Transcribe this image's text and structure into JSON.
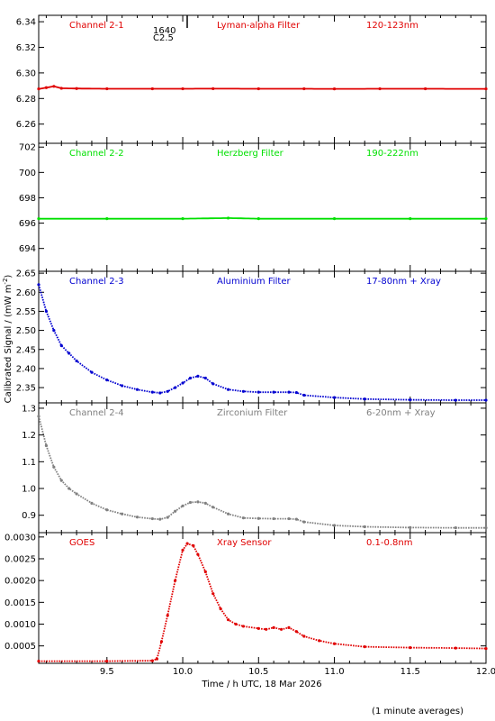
{
  "figure": {
    "ylabel": "Calibrated Signal / (mW m",
    "ylabel_sup": "-2",
    "ylabel_end": ")",
    "xlabel": "Time / h UTC, 18 Mar 2026",
    "footnote": "(1 minute averages)",
    "flare_time": "1640",
    "flare_class": "C2.5"
  },
  "chart_data": [
    {
      "type": "scatter",
      "channel": "Channel 2-1",
      "filter": "Lyman-alpha Filter",
      "band": "120-123nm",
      "color": "#e00000",
      "xlim": [
        9.05,
        12.0
      ],
      "ylim": [
        6.245,
        6.345
      ],
      "yticks": [
        6.26,
        6.28,
        6.3,
        6.32,
        6.34
      ],
      "ytick_labels": [
        "6.26",
        "6.28",
        "6.30",
        "6.32",
        "6.34"
      ],
      "x": [
        9.05,
        9.1,
        9.15,
        9.2,
        9.3,
        9.5,
        9.8,
        10.0,
        10.2,
        10.5,
        10.8,
        11.0,
        11.3,
        11.6,
        12.0
      ],
      "y": [
        6.2875,
        6.2885,
        6.2895,
        6.288,
        6.2878,
        6.2876,
        6.2876,
        6.2876,
        6.2877,
        6.2876,
        6.2876,
        6.2875,
        6.2876,
        6.2876,
        6.2875
      ]
    },
    {
      "type": "scatter",
      "channel": "Channel 2-2",
      "filter": "Herzberg Filter",
      "band": "190-222nm",
      "color": "#00e000",
      "xlim": [
        9.05,
        12.0
      ],
      "ylim": [
        692.2,
        702.3
      ],
      "yticks": [
        694,
        696,
        698,
        700,
        702
      ],
      "ytick_labels": [
        "694",
        "696",
        "698",
        "700",
        "702"
      ],
      "x": [
        9.05,
        9.5,
        10.0,
        10.3,
        10.5,
        11.0,
        11.5,
        12.0
      ],
      "y": [
        696.35,
        696.35,
        696.35,
        696.4,
        696.35,
        696.35,
        696.35,
        696.35
      ]
    },
    {
      "type": "scatter",
      "channel": "Channel 2-3",
      "filter": "Aluminium Filter",
      "band": "17-80nm + Xray",
      "color": "#0000d0",
      "xlim": [
        9.05,
        12.0
      ],
      "ylim": [
        2.31,
        2.655
      ],
      "yticks": [
        2.35,
        2.4,
        2.45,
        2.5,
        2.55,
        2.6,
        2.65
      ],
      "ytick_labels": [
        "2.35",
        "2.40",
        "2.45",
        "2.50",
        "2.55",
        "2.60",
        "2.65"
      ],
      "x": [
        9.05,
        9.1,
        9.15,
        9.2,
        9.25,
        9.3,
        9.4,
        9.5,
        9.6,
        9.7,
        9.8,
        9.85,
        9.9,
        9.95,
        10.0,
        10.05,
        10.1,
        10.15,
        10.2,
        10.3,
        10.4,
        10.5,
        10.6,
        10.7,
        10.75,
        10.8,
        11.0,
        11.2,
        11.5,
        11.8,
        12.0
      ],
      "y": [
        2.62,
        2.55,
        2.5,
        2.46,
        2.44,
        2.42,
        2.39,
        2.37,
        2.355,
        2.345,
        2.338,
        2.336,
        2.34,
        2.35,
        2.362,
        2.375,
        2.38,
        2.375,
        2.36,
        2.345,
        2.34,
        2.338,
        2.338,
        2.338,
        2.337,
        2.33,
        2.324,
        2.32,
        2.318,
        2.317,
        2.317
      ]
    },
    {
      "type": "scatter",
      "channel": "Channel 2-4",
      "filter": "Zirconium Filter",
      "band": "6-20nm + Xray",
      "color": "#808080",
      "xlim": [
        9.05,
        12.0
      ],
      "ylim": [
        0.835,
        1.32
      ],
      "yticks": [
        0.9,
        1.0,
        1.1,
        1.2,
        1.3
      ],
      "ytick_labels": [
        "0.9",
        "1.0",
        "1.1",
        "1.2",
        "1.3"
      ],
      "x": [
        9.05,
        9.1,
        9.15,
        9.2,
        9.25,
        9.3,
        9.4,
        9.5,
        9.6,
        9.7,
        9.8,
        9.85,
        9.9,
        9.95,
        10.0,
        10.05,
        10.1,
        10.15,
        10.2,
        10.3,
        10.4,
        10.5,
        10.6,
        10.7,
        10.75,
        10.8,
        11.0,
        11.2,
        11.5,
        11.8,
        12.0
      ],
      "y": [
        1.27,
        1.16,
        1.08,
        1.03,
        1.0,
        0.98,
        0.945,
        0.92,
        0.905,
        0.893,
        0.887,
        0.885,
        0.892,
        0.915,
        0.935,
        0.948,
        0.95,
        0.945,
        0.93,
        0.905,
        0.89,
        0.888,
        0.887,
        0.887,
        0.885,
        0.875,
        0.862,
        0.857,
        0.854,
        0.853,
        0.853
      ]
    },
    {
      "type": "scatter",
      "channel": "GOES",
      "filter": "Xray Sensor",
      "band": "0.1-0.8nm",
      "color": "#e00000",
      "xlim": [
        9.05,
        12.0
      ],
      "ylim": [
        0.0001,
        0.0031
      ],
      "yticks": [
        0.0005,
        0.001,
        0.0015,
        0.002,
        0.0025,
        0.003
      ],
      "ytick_labels": [
        "0.0005",
        "0.0010",
        "0.0015",
        "0.0020",
        "0.0025",
        "0.0030"
      ],
      "xticks": [
        9.5,
        10.0,
        10.5,
        11.0,
        11.5,
        12.0
      ],
      "xtick_labels": [
        "9.5",
        "10.0",
        "10.5",
        "11.0",
        "11.5",
        "12.0"
      ],
      "x": [
        9.05,
        9.5,
        9.8,
        9.83,
        9.86,
        9.9,
        9.95,
        10.0,
        10.03,
        10.07,
        10.1,
        10.15,
        10.2,
        10.25,
        10.3,
        10.35,
        10.4,
        10.5,
        10.55,
        10.6,
        10.65,
        10.7,
        10.75,
        10.8,
        10.9,
        11.0,
        11.2,
        11.5,
        11.8,
        12.0
      ],
      "y": [
        0.00015,
        0.00015,
        0.00016,
        0.0002,
        0.0006,
        0.0012,
        0.002,
        0.0027,
        0.00285,
        0.0028,
        0.0026,
        0.0022,
        0.0017,
        0.00135,
        0.0011,
        0.001,
        0.00095,
        0.0009,
        0.00088,
        0.00092,
        0.00088,
        0.00092,
        0.00083,
        0.00072,
        0.00062,
        0.00055,
        0.00048,
        0.00046,
        0.00045,
        0.00044
      ]
    }
  ]
}
